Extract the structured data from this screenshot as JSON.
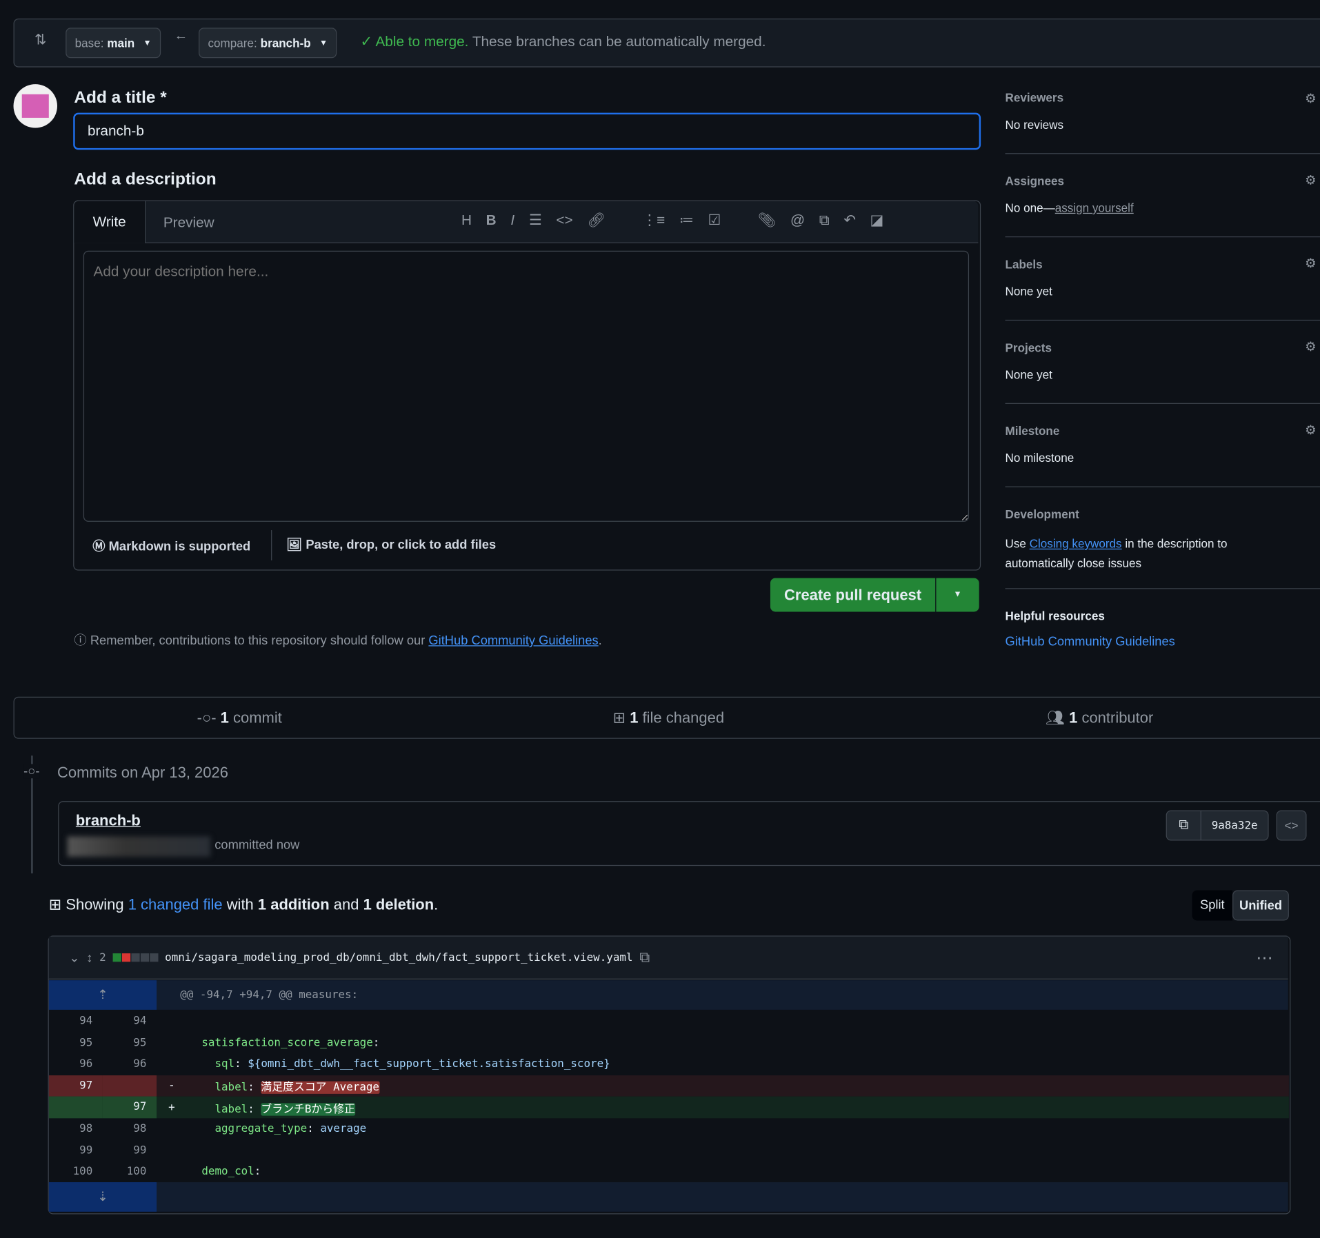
{
  "compare_bar": {
    "base_label": "base:",
    "base_value": "main",
    "compare_label": "compare:",
    "compare_value": "branch-b",
    "merge_status": "Able to merge.",
    "merge_detail": "These branches can be automatically merged.",
    "status_color": "#3fb950"
  },
  "form": {
    "title_label": "Add a title *",
    "title_value": "branch-b",
    "desc_label": "Add a description",
    "tabs": [
      "Write",
      "Preview"
    ],
    "desc_placeholder": "Add your description here...",
    "markdown_note": "Markdown is supported",
    "files_note": "Paste, drop, or click to add files",
    "create_button": "Create pull request",
    "reminder_prefix": "Remember, contributions to this repository should follow our",
    "reminder_link": "GitHub Community Guidelines",
    "reminder_suffix": ".",
    "toolbar_icons": [
      "heading-icon",
      "bold-icon",
      "italic-icon",
      "quote-icon",
      "code-icon",
      "link-icon",
      "ordered-list-icon",
      "unordered-list-icon",
      "task-list-icon",
      "attach-icon",
      "mention-icon",
      "reference-icon",
      "undo-icon",
      "slash-command-icon"
    ]
  },
  "sidebar": {
    "reviewers": {
      "title": "Reviewers",
      "value": "No reviews"
    },
    "assignees": {
      "title": "Assignees",
      "value": "No one—",
      "link": "assign yourself"
    },
    "labels": {
      "title": "Labels",
      "value": "None yet"
    },
    "projects": {
      "title": "Projects",
      "value": "None yet"
    },
    "milestone": {
      "title": "Milestone",
      "value": "No milestone"
    },
    "development": {
      "title": "Development",
      "pre": "Use",
      "link": "Closing keywords",
      "post": "in the description to automatically close issues"
    },
    "helpful": {
      "title": "Helpful resources",
      "link": "GitHub Community Guidelines"
    }
  },
  "stats": {
    "commits_count": "1",
    "commits_label": "commit",
    "files_count": "1",
    "files_label": "file changed",
    "contributors_count": "1",
    "contributors_label": "contributor"
  },
  "commits": {
    "date_header": "Commits on Apr 13, 2026",
    "title": "branch-b",
    "meta": "committed now",
    "sha": "9a8a32e"
  },
  "diff_summary": {
    "showing": "Showing",
    "changed": "1 changed file",
    "with": "with",
    "additions": "1 addition",
    "and": "and",
    "deletions": "1 deletion",
    "end": ".",
    "split": "Split",
    "unified": "Unified"
  },
  "file": {
    "changes": "2",
    "path": "omni/sagara_modeling_prod_db/omni_dbt_dwh/fact_support_ticket.view.yaml",
    "hunk": "@@ -94,7 +94,7 @@ measures:",
    "lines": [
      {
        "old": "94",
        "new": "94",
        "type": "ctx",
        "key": "",
        "val": ""
      },
      {
        "old": "95",
        "new": "95",
        "type": "ctx",
        "indent": "  ",
        "key": "satisfaction_score_average",
        "val": ""
      },
      {
        "old": "96",
        "new": "96",
        "type": "ctx",
        "indent": "    ",
        "key": "sql",
        "val": "${omni_dbt_dwh__fact_support_ticket.satisfaction_score}"
      },
      {
        "old": "97",
        "new": "",
        "type": "del",
        "indent": "    ",
        "key": "label",
        "val": "満足度スコア Average"
      },
      {
        "old": "",
        "new": "97",
        "type": "add",
        "indent": "    ",
        "key": "label",
        "val": "ブランチBから修正"
      },
      {
        "old": "98",
        "new": "98",
        "type": "ctx",
        "indent": "    ",
        "key": "aggregate_type",
        "val": "average"
      },
      {
        "old": "99",
        "new": "99",
        "type": "ctx",
        "key": "",
        "val": ""
      },
      {
        "old": "100",
        "new": "100",
        "type": "ctx",
        "indent": "  ",
        "key": "demo_col",
        "val": ""
      }
    ]
  }
}
